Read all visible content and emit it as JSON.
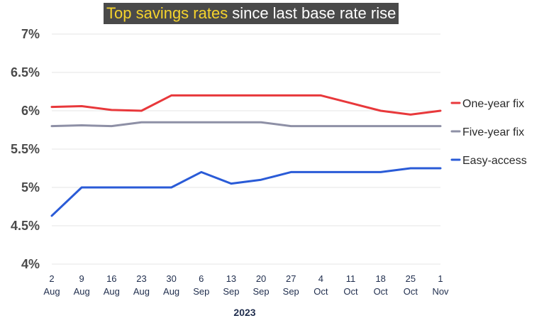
{
  "chart_data": {
    "type": "line",
    "title_highlight": "Top savings rates",
    "title_rest": "since last base rate rise",
    "xlabel": "2023",
    "ylabel": "",
    "ylim": [
      4,
      7
    ],
    "yticks": [
      "4%",
      "4.5%",
      "5%",
      "5.5%",
      "6%",
      "6.5%",
      "7%"
    ],
    "ytick_values": [
      4,
      4.5,
      5,
      5.5,
      6,
      6.5,
      7
    ],
    "categories": [
      {
        "day": "2",
        "month": "Aug"
      },
      {
        "day": "9",
        "month": "Aug"
      },
      {
        "day": "16",
        "month": "Aug"
      },
      {
        "day": "23",
        "month": "Aug"
      },
      {
        "day": "30",
        "month": "Aug"
      },
      {
        "day": "6",
        "month": "Sep"
      },
      {
        "day": "13",
        "month": "Sep"
      },
      {
        "day": "20",
        "month": "Sep"
      },
      {
        "day": "27",
        "month": "Sep"
      },
      {
        "day": "4",
        "month": "Oct"
      },
      {
        "day": "11",
        "month": "Oct"
      },
      {
        "day": "18",
        "month": "Oct"
      },
      {
        "day": "25",
        "month": "Oct"
      },
      {
        "day": "1",
        "month": "Nov"
      }
    ],
    "series": [
      {
        "name": "One-year fix",
        "color": "#e8383b",
        "values": [
          6.05,
          6.06,
          6.01,
          6.0,
          6.2,
          6.2,
          6.2,
          6.2,
          6.2,
          6.2,
          6.1,
          6.0,
          5.95,
          6.0
        ]
      },
      {
        "name": "Five-year fix",
        "color": "#8e90a6",
        "values": [
          5.8,
          5.81,
          5.8,
          5.85,
          5.85,
          5.85,
          5.85,
          5.85,
          5.8,
          5.8,
          5.8,
          5.8,
          5.8,
          5.8
        ]
      },
      {
        "name": "Easy-access",
        "color": "#2a5bd7",
        "values": [
          4.63,
          5.0,
          5.0,
          5.0,
          5.0,
          5.2,
          5.05,
          5.1,
          5.2,
          5.2,
          5.2,
          5.2,
          5.25,
          5.25
        ]
      }
    ],
    "legend_position": "right",
    "grid": true
  }
}
